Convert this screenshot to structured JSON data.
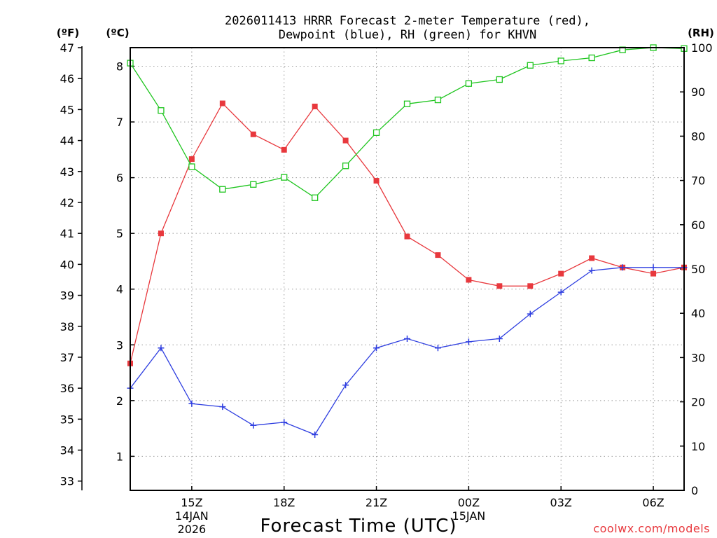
{
  "chart_data": {
    "type": "line",
    "title_lines": [
      "2026011413 HRRR Forecast 2-meter Temperature (red),",
      "Dewpoint (blue), RH (green) for KHVN"
    ],
    "units": {
      "fahrenheit": "(ºF)",
      "celsius": "(ºC)",
      "rh": "(RH)"
    },
    "xlabel": "Forecast Time (UTC)",
    "credit": "coolwx.com/models",
    "x": [
      13,
      14,
      15,
      16,
      17,
      18,
      19,
      20,
      21,
      22,
      23,
      24,
      25,
      26,
      27,
      28,
      29,
      30,
      31
    ],
    "xlim": [
      13,
      31
    ],
    "x_ticks": [
      {
        "x": 15,
        "label": "15Z",
        "date": "14JAN",
        "year": "2026"
      },
      {
        "x": 18,
        "label": "18Z"
      },
      {
        "x": 21,
        "label": "21Z"
      },
      {
        "x": 24,
        "label": "00Z",
        "date": "15JAN"
      },
      {
        "x": 27,
        "label": "03Z"
      },
      {
        "x": 30,
        "label": "06Z"
      }
    ],
    "y_left_celsius": {
      "ticks": [
        1,
        2,
        3,
        4,
        5,
        6,
        7,
        8
      ]
    },
    "y_left_fahrenheit": {
      "range": [
        32.7,
        47
      ],
      "ticks": [
        33,
        34,
        35,
        36,
        37,
        38,
        39,
        40,
        41,
        42,
        43,
        44,
        45,
        46,
        47
      ]
    },
    "y_right_rh": {
      "range": [
        0,
        100
      ],
      "ticks": [
        0,
        10,
        20,
        30,
        40,
        50,
        60,
        70,
        80,
        90,
        100
      ]
    },
    "series": [
      {
        "name": "2-meter Temperature",
        "unit": "F",
        "axis": "fahrenheit",
        "color": "#e8383d",
        "marker": "filled-square",
        "values": [
          36.8,
          41.0,
          43.4,
          45.2,
          44.2,
          43.7,
          45.1,
          44.0,
          42.7,
          40.9,
          40.3,
          39.5,
          39.3,
          39.3,
          39.7,
          40.2,
          39.9,
          39.7,
          39.9
        ]
      },
      {
        "name": "Dewpoint",
        "unit": "F",
        "axis": "fahrenheit",
        "color": "#2e3ee0",
        "marker": "plus",
        "values": [
          36.0,
          37.3,
          35.5,
          35.4,
          34.8,
          34.9,
          34.5,
          36.1,
          37.3,
          37.6,
          37.3,
          37.5,
          37.6,
          38.4,
          39.1,
          39.8,
          39.9,
          39.9,
          39.9
        ]
      },
      {
        "name": "RH",
        "unit": "%",
        "axis": "rh",
        "color": "#1ec51e",
        "marker": "hollow-square",
        "values": [
          96.5,
          85.8,
          73.1,
          68.0,
          69.1,
          70.7,
          66.1,
          73.3,
          80.8,
          87.3,
          88.2,
          91.9,
          92.8,
          96.0,
          97.0,
          97.7,
          99.5,
          100.0,
          99.8
        ]
      }
    ]
  }
}
